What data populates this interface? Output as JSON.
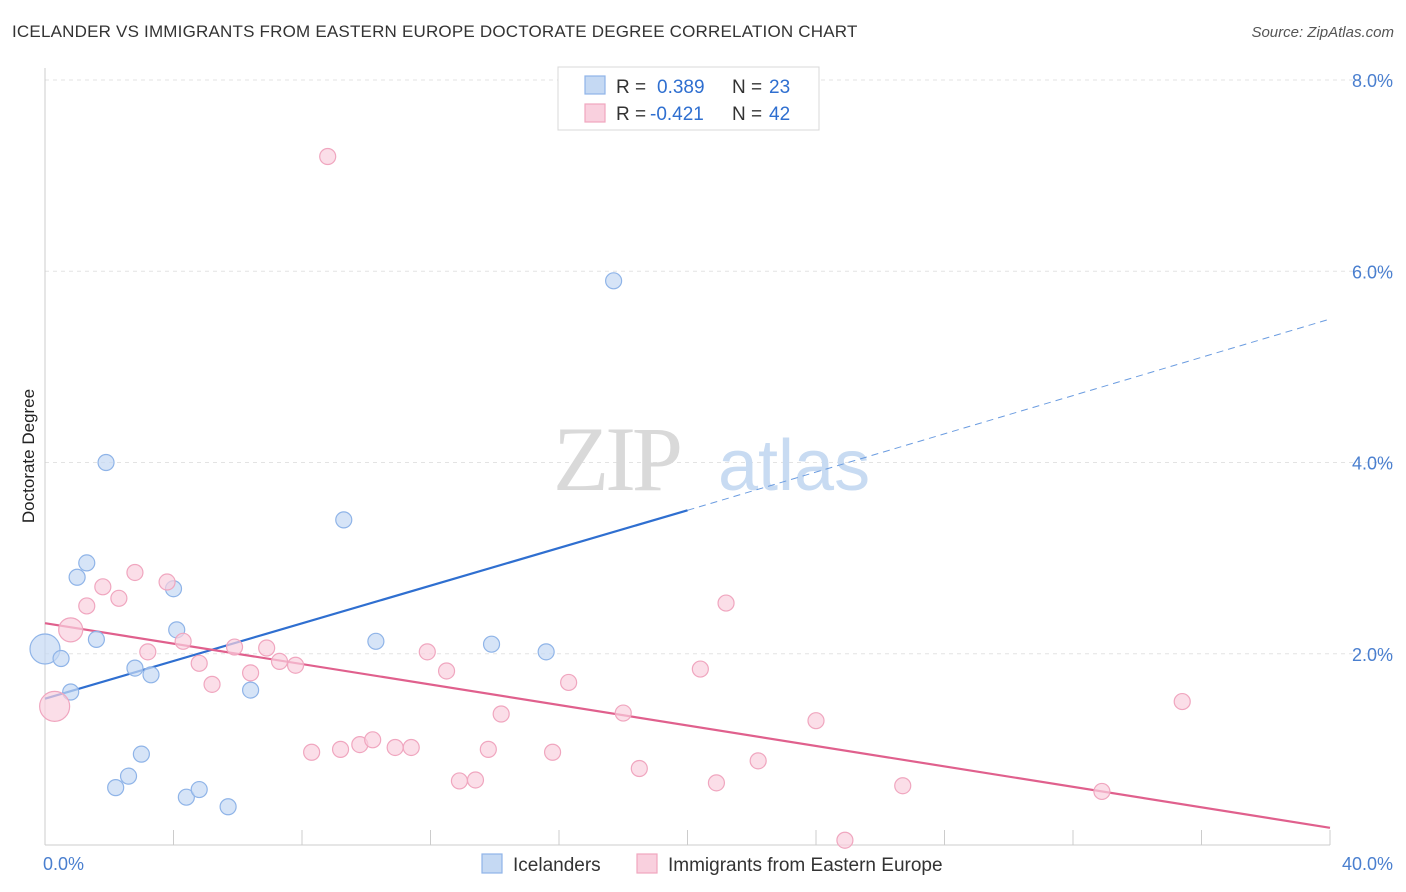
{
  "title": "ICELANDER VS IMMIGRANTS FROM EASTERN EUROPE DOCTORATE DEGREE CORRELATION CHART",
  "source": "Source: ZipAtlas.com",
  "watermark": {
    "zip": "ZIP",
    "atlas": "atlas"
  },
  "chart_data": {
    "type": "scatter",
    "xlabel": "",
    "ylabel": "Doctorate Degree",
    "xlim": [
      0,
      40
    ],
    "ylim": [
      0,
      8.0
    ],
    "x_tick_labels": [
      {
        "value": 0,
        "label": "0.0%"
      },
      {
        "value": 40,
        "label": "40.0%"
      }
    ],
    "y_tick_labels": [
      {
        "value": 2,
        "label": "2.0%"
      },
      {
        "value": 4,
        "label": "4.0%"
      },
      {
        "value": 6,
        "label": "6.0%"
      },
      {
        "value": 8,
        "label": "8.0%"
      }
    ],
    "legend": [
      {
        "r_label": "R =",
        "r_value": "0.389",
        "n_label": "N =",
        "n_value": "23"
      },
      {
        "r_label": "R =",
        "r_value": "-0.421",
        "n_label": "N =",
        "n_value": "42"
      }
    ],
    "series": [
      {
        "name": "Icelanders",
        "color": "#8fb4e8",
        "fill": "#c5d9f3",
        "line_color": "#2f6fd0",
        "trend": {
          "x0": 0,
          "y0": 1.53,
          "x1": 20,
          "y1": 3.5,
          "x_dash_end": 40,
          "y_dash_end": 5.5
        },
        "points": [
          {
            "x": 0.0,
            "y": 2.05,
            "big": true
          },
          {
            "x": 0.5,
            "y": 1.95
          },
          {
            "x": 0.8,
            "y": 1.6
          },
          {
            "x": 1.0,
            "y": 2.8
          },
          {
            "x": 1.3,
            "y": 2.95
          },
          {
            "x": 1.6,
            "y": 2.15
          },
          {
            "x": 1.9,
            "y": 4.0
          },
          {
            "x": 2.2,
            "y": 0.6
          },
          {
            "x": 2.6,
            "y": 0.72
          },
          {
            "x": 2.8,
            "y": 1.85
          },
          {
            "x": 3.0,
            "y": 0.95
          },
          {
            "x": 3.3,
            "y": 1.78
          },
          {
            "x": 4.0,
            "y": 2.68
          },
          {
            "x": 4.1,
            "y": 2.25
          },
          {
            "x": 4.4,
            "y": 0.5
          },
          {
            "x": 4.8,
            "y": 0.58
          },
          {
            "x": 5.7,
            "y": 0.4
          },
          {
            "x": 6.4,
            "y": 1.62
          },
          {
            "x": 9.3,
            "y": 3.4
          },
          {
            "x": 10.3,
            "y": 2.13
          },
          {
            "x": 13.9,
            "y": 2.1
          },
          {
            "x": 15.6,
            "y": 2.02
          },
          {
            "x": 17.7,
            "y": 5.9
          }
        ]
      },
      {
        "name": "Immigrants from Eastern Europe",
        "color": "#f0a6bf",
        "fill": "#f9d0de",
        "line_color": "#e0608d",
        "trend": {
          "x0": 0,
          "y0": 2.32,
          "x1": 40,
          "y1": 0.18
        },
        "points": [
          {
            "x": 0.3,
            "y": 1.45,
            "big": true
          },
          {
            "x": 0.8,
            "y": 2.25,
            "big2": true
          },
          {
            "x": 1.3,
            "y": 2.5
          },
          {
            "x": 1.8,
            "y": 2.7
          },
          {
            "x": 2.3,
            "y": 2.58
          },
          {
            "x": 2.8,
            "y": 2.85
          },
          {
            "x": 3.2,
            "y": 2.02
          },
          {
            "x": 3.8,
            "y": 2.75
          },
          {
            "x": 4.3,
            "y": 2.13
          },
          {
            "x": 4.8,
            "y": 1.9
          },
          {
            "x": 5.2,
            "y": 1.68
          },
          {
            "x": 5.9,
            "y": 2.07
          },
          {
            "x": 6.4,
            "y": 1.8
          },
          {
            "x": 6.9,
            "y": 2.06
          },
          {
            "x": 7.3,
            "y": 1.92
          },
          {
            "x": 7.8,
            "y": 1.88
          },
          {
            "x": 8.3,
            "y": 0.97
          },
          {
            "x": 8.8,
            "y": 7.2
          },
          {
            "x": 9.2,
            "y": 1.0
          },
          {
            "x": 9.8,
            "y": 1.05
          },
          {
            "x": 10.2,
            "y": 1.1
          },
          {
            "x": 10.9,
            "y": 1.02
          },
          {
            "x": 11.4,
            "y": 1.02
          },
          {
            "x": 11.9,
            "y": 2.02
          },
          {
            "x": 12.5,
            "y": 1.82
          },
          {
            "x": 12.9,
            "y": 0.67
          },
          {
            "x": 13.4,
            "y": 0.68
          },
          {
            "x": 13.8,
            "y": 1.0
          },
          {
            "x": 14.2,
            "y": 1.37
          },
          {
            "x": 15.8,
            "y": 0.97
          },
          {
            "x": 16.3,
            "y": 1.7
          },
          {
            "x": 18.0,
            "y": 1.38
          },
          {
            "x": 18.5,
            "y": 0.8
          },
          {
            "x": 20.4,
            "y": 1.84
          },
          {
            "x": 20.9,
            "y": 0.65
          },
          {
            "x": 21.2,
            "y": 2.53
          },
          {
            "x": 22.2,
            "y": 0.88
          },
          {
            "x": 24.0,
            "y": 1.3
          },
          {
            "x": 24.9,
            "y": 0.05
          },
          {
            "x": 26.7,
            "y": 0.62
          },
          {
            "x": 32.9,
            "y": 0.56
          },
          {
            "x": 35.4,
            "y": 1.5
          }
        ]
      }
    ]
  }
}
